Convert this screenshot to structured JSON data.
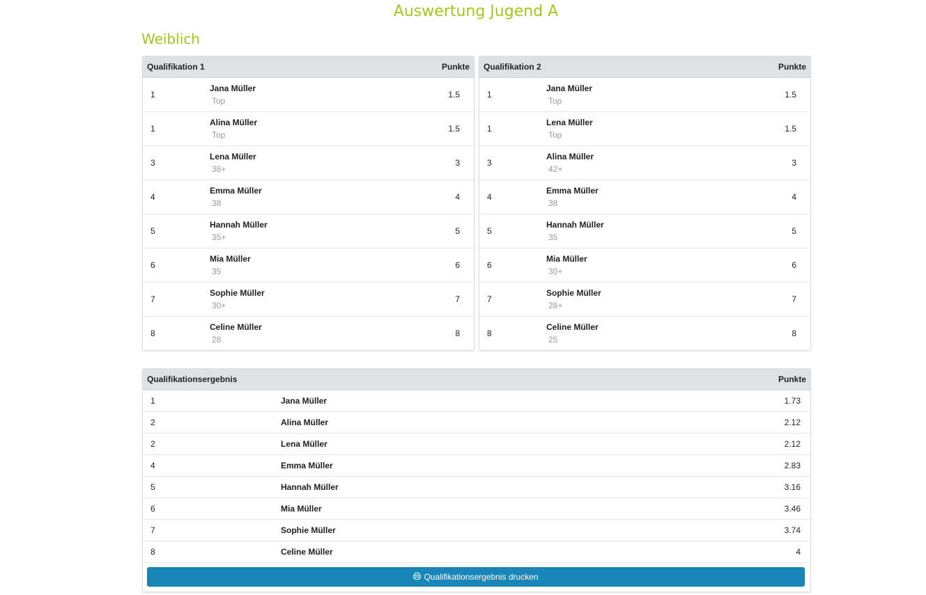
{
  "page_title": "Auswertung Jugend A",
  "section_title": "Weiblich",
  "qual1": {
    "title": "Qualifikation 1",
    "points_header": "Punkte",
    "rows": [
      {
        "rank": "1",
        "name": "Jana Müller",
        "result": "Top",
        "points": "1.5"
      },
      {
        "rank": "1",
        "name": "Alina Müller",
        "result": "Top",
        "points": "1.5"
      },
      {
        "rank": "3",
        "name": "Lena Müller",
        "result": "38+",
        "points": "3"
      },
      {
        "rank": "4",
        "name": "Emma Müller",
        "result": "38",
        "points": "4"
      },
      {
        "rank": "5",
        "name": "Hannah Müller",
        "result": "35+",
        "points": "5"
      },
      {
        "rank": "6",
        "name": "Mia Müller",
        "result": "35",
        "points": "6"
      },
      {
        "rank": "7",
        "name": "Sophie Müller",
        "result": "30+",
        "points": "7"
      },
      {
        "rank": "8",
        "name": "Celine Müller",
        "result": "28",
        "points": "8"
      }
    ]
  },
  "qual2": {
    "title": "Qualifikation 2",
    "points_header": "Punkte",
    "rows": [
      {
        "rank": "1",
        "name": "Jana Müller",
        "result": "Top",
        "points": "1.5"
      },
      {
        "rank": "1",
        "name": "Lena Müller",
        "result": "Top",
        "points": "1.5"
      },
      {
        "rank": "3",
        "name": "Alina Müller",
        "result": "42+",
        "points": "3"
      },
      {
        "rank": "4",
        "name": "Emma Müller",
        "result": "38",
        "points": "4"
      },
      {
        "rank": "5",
        "name": "Hannah Müller",
        "result": "35",
        "points": "5"
      },
      {
        "rank": "6",
        "name": "Mia Müller",
        "result": "30+",
        "points": "6"
      },
      {
        "rank": "7",
        "name": "Sophie Müller",
        "result": "28+",
        "points": "7"
      },
      {
        "rank": "8",
        "name": "Celine Müller",
        "result": "25",
        "points": "8"
      }
    ]
  },
  "result": {
    "title": "Qualifikationsergebnis",
    "points_header": "Punkte",
    "rows": [
      {
        "rank": "1",
        "name": "Jana Müller",
        "points": "1.73"
      },
      {
        "rank": "2",
        "name": "Alina Müller",
        "points": "2.12"
      },
      {
        "rank": "2",
        "name": "Lena Müller",
        "points": "2.12"
      },
      {
        "rank": "4",
        "name": "Emma Müller",
        "points": "2.83"
      },
      {
        "rank": "5",
        "name": "Hannah Müller",
        "points": "3.16"
      },
      {
        "rank": "6",
        "name": "Mia Müller",
        "points": "3.46"
      },
      {
        "rank": "7",
        "name": "Sophie Müller",
        "points": "3.74"
      },
      {
        "rank": "8",
        "name": "Celine Müller",
        "points": "4"
      }
    ],
    "print_button_label": "Qualifikationsergebnis drucken",
    "print_icon": "printer-icon"
  },
  "colors": {
    "title_green": "#a4c71a",
    "button_blue": "#1a86b8",
    "header_gray": "#dfe2e5"
  }
}
